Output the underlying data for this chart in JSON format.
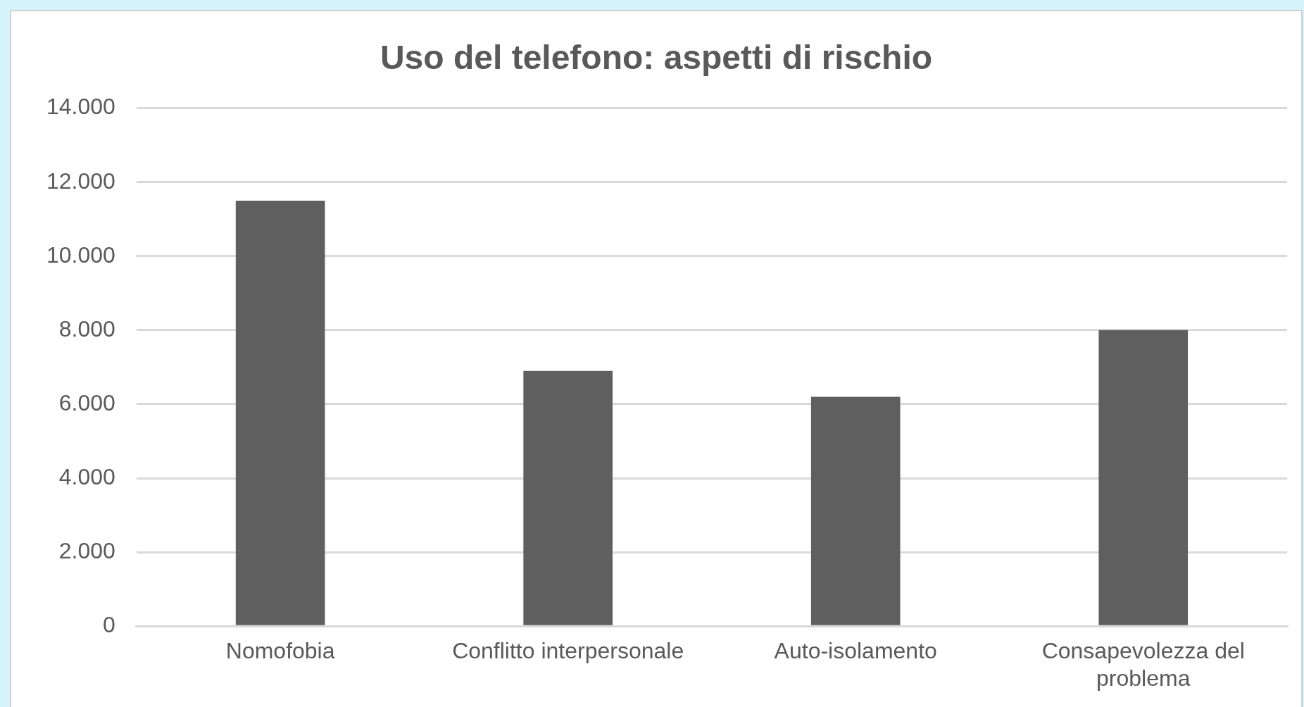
{
  "chart_data": {
    "type": "bar",
    "title": "Uso del telefono: aspetti di rischio",
    "categories": [
      "Nomofobia",
      "Conflitto interpersonale",
      "Auto-isolamento",
      "Consapevolezza del problema"
    ],
    "values": [
      11500,
      6900,
      6200,
      8000
    ],
    "color": "#5f5f5f",
    "ylim": [
      0,
      14000
    ],
    "yticks": [
      {
        "value": 0,
        "label": "0"
      },
      {
        "value": 2000,
        "label": "2.000"
      },
      {
        "value": 4000,
        "label": "4.000"
      },
      {
        "value": 6000,
        "label": "6.000"
      },
      {
        "value": 8000,
        "label": "8.000"
      },
      {
        "value": 10000,
        "label": "10.000"
      },
      {
        "value": 12000,
        "label": "12.000"
      },
      {
        "value": 14000,
        "label": "14.000"
      }
    ],
    "grid": "y",
    "legend": false
  }
}
